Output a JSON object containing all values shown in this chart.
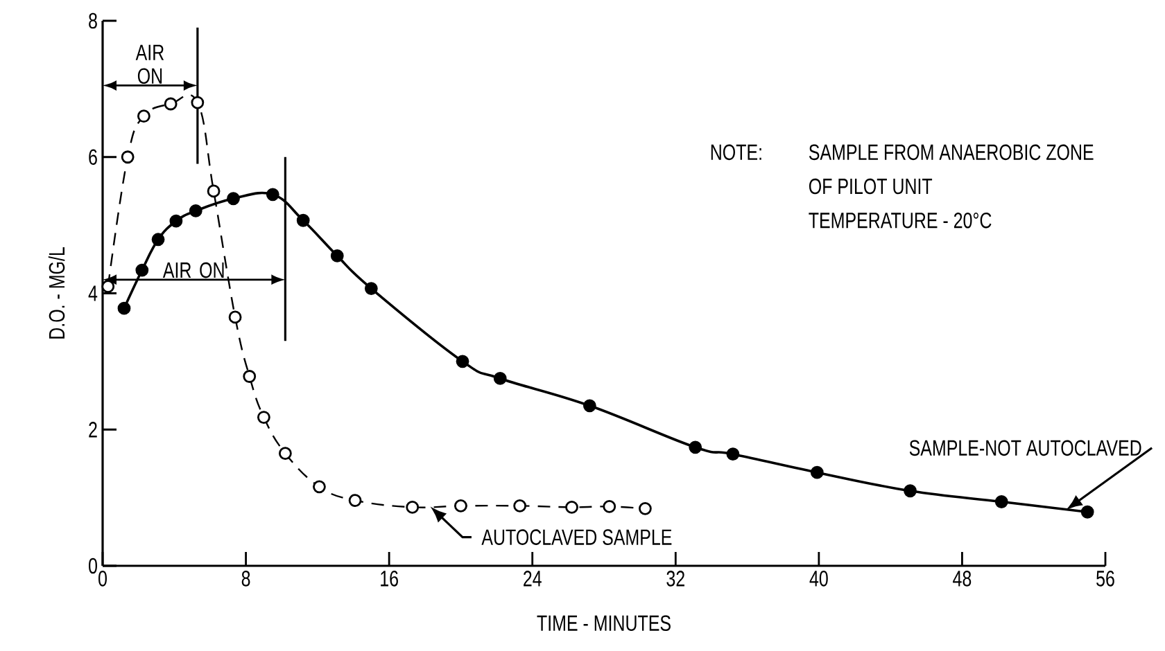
{
  "chart_data": {
    "type": "line",
    "xlabel": "TIME - MINUTES",
    "ylabel": "D.O. - MG/L",
    "xlim": [
      0,
      56
    ],
    "ylim": [
      0,
      8
    ],
    "xticks": [
      0,
      8,
      16,
      24,
      32,
      40,
      48,
      56
    ],
    "yticks": [
      0,
      2,
      4,
      6,
      8
    ],
    "marker": "circle",
    "series": [
      {
        "color": "#000000",
        "line_style": "dashed",
        "x": [
          0.3,
          1.4,
          2.3,
          3.8,
          5.3,
          6.2,
          7.4,
          8.2,
          9.0,
          10.2,
          12.1,
          14.1,
          17.3,
          20.0,
          23.3,
          26.2,
          28.3,
          30.3
        ],
        "values": [
          4.1,
          6.0,
          6.6,
          6.78,
          6.8,
          5.5,
          3.65,
          2.78,
          2.18,
          1.65,
          1.16,
          0.96,
          0.86,
          0.88,
          0.88,
          0.86,
          0.87,
          0.84
        ]
      },
      {
        "color": "#000000",
        "line_style": "solid",
        "x": [
          1.2,
          2.2,
          3.1,
          4.1,
          5.2,
          7.3,
          9.5,
          11.2,
          13.1,
          15.0,
          20.1,
          22.2,
          27.2,
          33.1,
          35.2,
          39.9,
          45.1,
          50.2,
          55.0
        ],
        "values": [
          3.78,
          4.34,
          4.79,
          5.06,
          5.21,
          5.39,
          5.45,
          5.07,
          4.55,
          4.07,
          3.0,
          2.75,
          2.35,
          1.74,
          1.64,
          1.37,
          1.1,
          0.94,
          0.79
        ]
      }
    ],
    "ref_lines": [
      {
        "axis": "x",
        "value": 5.3,
        "label": "AIR ON"
      },
      {
        "axis": "x",
        "value": 10.2,
        "label": "AIR ON"
      }
    ],
    "annotations": [
      {
        "text": "AUTOCLAVED SAMPLE",
        "x": 18.3,
        "y": 0.87
      },
      {
        "text": "SAMPLE-NOT AUTOCLAVED",
        "x": 53.8,
        "y": 0.82
      },
      "NOTE:",
      "SAMPLE FROM ANAEROBIC ZONE",
      "OF PILOT UNIT",
      "TEMPERATURE - 20°C"
    ]
  }
}
